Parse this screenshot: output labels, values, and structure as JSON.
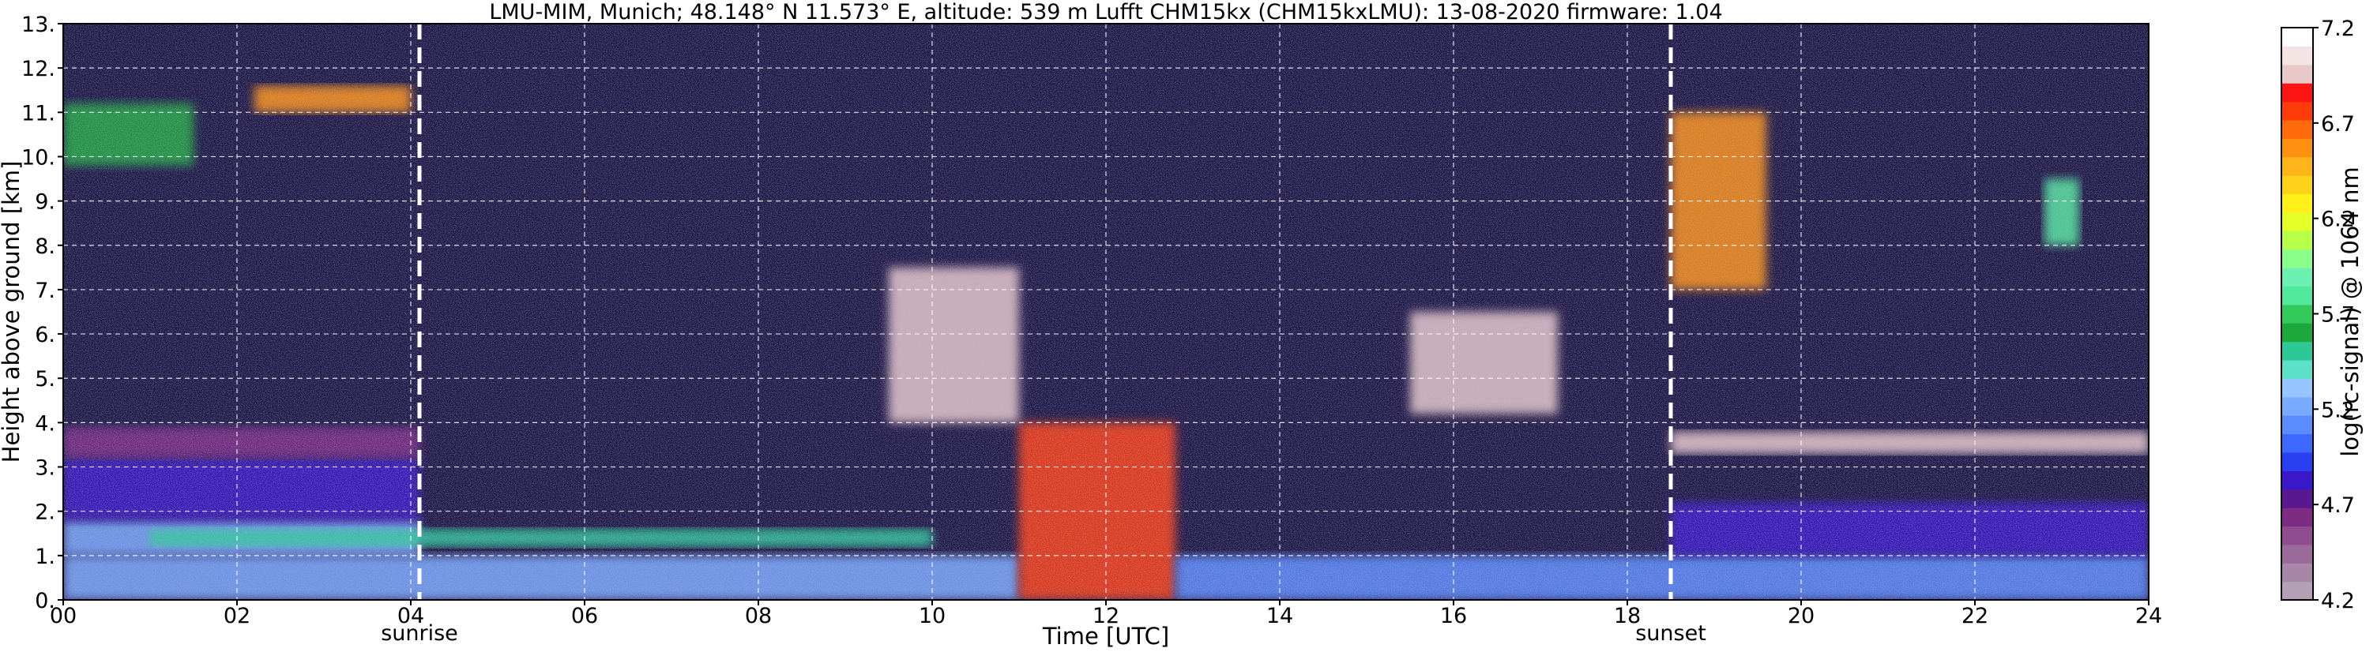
{
  "chart_data": {
    "type": "heatmap",
    "title": "LMU-MIM, Munich; 48.148° N 11.573° E, altitude: 539 m    Lufft CHM15kx (CHM15kxLMU): 13-08-2020    firmware: 1.04",
    "xlabel": "Time [UTC]",
    "ylabel": "Height above ground [km]",
    "xlim": [
      0,
      24
    ],
    "ylim": [
      0,
      13
    ],
    "x_ticks": [
      "00",
      "02",
      "04",
      "06",
      "08",
      "10",
      "12",
      "14",
      "16",
      "18",
      "20",
      "22",
      "24"
    ],
    "y_ticks": [
      "0.",
      "1.",
      "2.",
      "3.",
      "4.",
      "5.",
      "6.",
      "7.",
      "8.",
      "9.",
      "10.",
      "11.",
      "12.",
      "13."
    ],
    "grid": true,
    "events": [
      {
        "label": "sunrise",
        "x": 4.1
      },
      {
        "label": "sunset",
        "x": 18.5
      }
    ],
    "colorbar": {
      "label": "log(rc-signal) @ 1064 nm",
      "range": [
        4.2,
        7.2
      ],
      "ticks": [
        "4.2",
        "4.7",
        "5.2",
        "5.7",
        "6.2",
        "6.7",
        "7.2"
      ],
      "colors": [
        "#b4a0b4",
        "#a886a8",
        "#9a6a9a",
        "#8e4c8e",
        "#7c2c82",
        "#5a1890",
        "#3818c8",
        "#2840f0",
        "#3c68ff",
        "#5a8cff",
        "#78aaff",
        "#96c6ff",
        "#5ce0c8",
        "#2cc896",
        "#1ea83c",
        "#32c85a",
        "#50e89a",
        "#6af0b0",
        "#8aff8a",
        "#b8ff4a",
        "#e2ff28",
        "#fff01a",
        "#ffd21a",
        "#ffb41a",
        "#ff9010",
        "#ff6a0a",
        "#ff3c0a",
        "#ff1414",
        "#e8c8c8",
        "#f4e4e4",
        "#ffffff"
      ]
    },
    "features": [
      {
        "t": [
          0.0,
          4.1
        ],
        "h": [
          1.0,
          1.8
        ],
        "v": 5.2
      },
      {
        "t": [
          0.0,
          4.1
        ],
        "h": [
          1.8,
          3.2
        ],
        "v": 4.8
      },
      {
        "t": [
          0.0,
          4.1
        ],
        "h": [
          3.2,
          3.9
        ],
        "v": 4.6
      },
      {
        "t": [
          0.0,
          11.0
        ],
        "h": [
          0.0,
          1.0
        ],
        "v": 5.2
      },
      {
        "t": [
          1.0,
          10.0
        ],
        "h": [
          1.2,
          1.6
        ],
        "v": 5.5
      },
      {
        "t": [
          11.0,
          12.8
        ],
        "h": [
          0.0,
          4.0
        ],
        "v": 6.8
      },
      {
        "t": [
          12.8,
          24.0
        ],
        "h": [
          0.0,
          1.0
        ],
        "v": 5.1
      },
      {
        "t": [
          18.5,
          24.0
        ],
        "h": [
          1.0,
          2.2
        ],
        "v": 4.8
      },
      {
        "t": [
          18.5,
          24.0
        ],
        "h": [
          3.3,
          3.8
        ],
        "v": 7.0
      },
      {
        "t": [
          18.5,
          19.6
        ],
        "h": [
          7.0,
          11.0
        ],
        "v": 6.6
      },
      {
        "t": [
          0.0,
          1.5
        ],
        "h": [
          9.8,
          11.2
        ],
        "v": 5.6
      },
      {
        "t": [
          2.2,
          4.0
        ],
        "h": [
          11.0,
          11.6
        ],
        "v": 6.6
      },
      {
        "t": [
          9.5,
          11.0
        ],
        "h": [
          4.0,
          7.5
        ],
        "v": 7.0
      },
      {
        "t": [
          15.5,
          17.2
        ],
        "h": [
          4.2,
          6.5
        ],
        "v": 7.0
      },
      {
        "t": [
          22.8,
          23.2
        ],
        "h": [
          8.0,
          9.5
        ],
        "v": 5.8
      }
    ]
  }
}
